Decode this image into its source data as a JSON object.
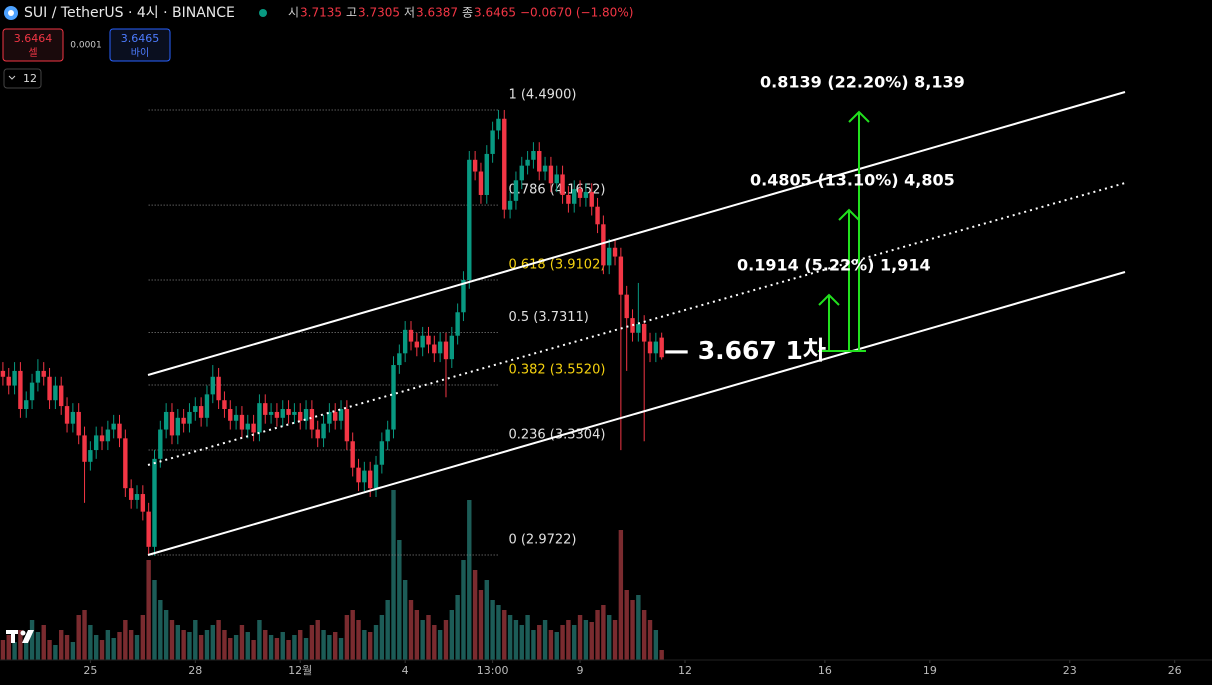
{
  "header": {
    "symbol": "SUI / TetherUS · 4시 · BINANCE",
    "ohlc": [
      {
        "label": "시",
        "value": "3.7135"
      },
      {
        "label": "고",
        "value": "3.7305"
      },
      {
        "label": "저",
        "value": "3.6387"
      },
      {
        "label": "종",
        "value": "3.6465"
      }
    ],
    "change": "−0.0670 (−1.80%)",
    "sell": {
      "price": "3.6464",
      "label": "셀"
    },
    "spread": "0.0001",
    "buy": {
      "price": "3.6465",
      "label": "바이"
    },
    "interval": "12"
  },
  "chart_data": {
    "type": "candlestick",
    "up_color": "#089981",
    "down_color": "#f23645",
    "volume_up_color": "#1c5c57",
    "volume_down_color": "#7a2b2f",
    "xlim": [
      -0.5,
      207.4
    ],
    "ylim": [
      2.614,
      4.865
    ],
    "volume_ylim": [
      0,
      400
    ],
    "xticks": [
      {
        "value": 15,
        "label": "25"
      },
      {
        "value": 33,
        "label": "28"
      },
      {
        "value": 51,
        "label": "12월"
      },
      {
        "value": 69,
        "label": "4"
      },
      {
        "value": 84,
        "label": "13:00"
      },
      {
        "value": 99,
        "label": "9"
      },
      {
        "value": 117,
        "label": "12"
      },
      {
        "value": 141,
        "label": "16"
      },
      {
        "value": 159,
        "label": "19"
      },
      {
        "value": 183,
        "label": "23"
      },
      {
        "value": 201,
        "label": "26"
      }
    ],
    "open": [
      3.6,
      3.58,
      3.55,
      3.6,
      3.47,
      3.5,
      3.56,
      3.6,
      3.58,
      3.5,
      3.55,
      3.48,
      3.42,
      3.46,
      3.38,
      3.29,
      3.33,
      3.38,
      3.36,
      3.4,
      3.42,
      3.37,
      3.2,
      3.16,
      3.18,
      3.12,
      3.0,
      3.3,
      3.4,
      3.46,
      3.38,
      3.44,
      3.42,
      3.46,
      3.48,
      3.44,
      3.52,
      3.58,
      3.5,
      3.47,
      3.43,
      3.45,
      3.4,
      3.42,
      3.39,
      3.49,
      3.45,
      3.46,
      3.44,
      3.47,
      3.45,
      3.46,
      3.43,
      3.47,
      3.4,
      3.37,
      3.42,
      3.46,
      3.43,
      3.47,
      3.36,
      3.27,
      3.22,
      3.26,
      3.2,
      3.28,
      3.36,
      3.4,
      3.62,
      3.66,
      3.74,
      3.7,
      3.68,
      3.72,
      3.69,
      3.66,
      3.7,
      3.64,
      3.72,
      3.8,
      3.91,
      4.32,
      4.28,
      4.2,
      4.34,
      4.42,
      4.46,
      4.15,
      4.18,
      4.25,
      4.3,
      4.32,
      4.35,
      4.28,
      4.3,
      4.24,
      4.27,
      4.2,
      4.17,
      4.22,
      4.19,
      4.21,
      4.16,
      4.1,
      3.96,
      4.02,
      3.99,
      3.86,
      3.78,
      3.73,
      3.76,
      3.7,
      3.66,
      3.7135
    ],
    "high": [
      3.63,
      3.61,
      3.63,
      3.63,
      3.53,
      3.59,
      3.64,
      3.63,
      3.61,
      3.58,
      3.58,
      3.51,
      3.49,
      3.49,
      3.41,
      3.36,
      3.41,
      3.41,
      3.43,
      3.45,
      3.45,
      3.4,
      3.23,
      3.21,
      3.21,
      3.15,
      3.33,
      3.43,
      3.49,
      3.49,
      3.47,
      3.47,
      3.49,
      3.51,
      3.51,
      3.55,
      3.62,
      3.61,
      3.53,
      3.5,
      3.48,
      3.48,
      3.45,
      3.45,
      3.52,
      3.52,
      3.49,
      3.49,
      3.5,
      3.5,
      3.49,
      3.49,
      3.5,
      3.5,
      3.43,
      3.45,
      3.49,
      3.49,
      3.5,
      3.5,
      3.39,
      3.3,
      3.29,
      3.29,
      3.31,
      3.39,
      3.43,
      3.65,
      3.69,
      3.77,
      3.77,
      3.73,
      3.75,
      3.75,
      3.72,
      3.73,
      3.73,
      3.75,
      3.83,
      3.94,
      4.35,
      4.35,
      4.31,
      4.37,
      4.45,
      4.49,
      4.49,
      4.21,
      4.28,
      4.33,
      4.35,
      4.38,
      4.38,
      4.33,
      4.33,
      4.3,
      4.3,
      4.23,
      4.25,
      4.25,
      4.24,
      4.24,
      4.19,
      4.13,
      4.05,
      4.05,
      4.02,
      3.89,
      3.81,
      3.9,
      3.79,
      3.73,
      3.73,
      3.7305
    ],
    "low": [
      3.55,
      3.52,
      3.52,
      3.44,
      3.44,
      3.47,
      3.53,
      3.55,
      3.47,
      3.47,
      3.45,
      3.39,
      3.39,
      3.35,
      3.15,
      3.26,
      3.3,
      3.33,
      3.33,
      3.37,
      3.34,
      3.17,
      3.13,
      3.13,
      3.09,
      2.97,
      2.97,
      3.27,
      3.37,
      3.35,
      3.35,
      3.39,
      3.39,
      3.43,
      3.41,
      3.41,
      3.49,
      3.47,
      3.44,
      3.4,
      3.4,
      3.37,
      3.37,
      3.36,
      3.36,
      3.42,
      3.42,
      3.41,
      3.41,
      3.42,
      3.42,
      3.4,
      3.4,
      3.37,
      3.34,
      3.34,
      3.39,
      3.4,
      3.4,
      3.33,
      3.24,
      3.19,
      3.19,
      3.17,
      3.17,
      3.25,
      3.33,
      3.37,
      3.59,
      3.63,
      3.67,
      3.65,
      3.65,
      3.66,
      3.63,
      3.63,
      3.51,
      3.61,
      3.69,
      3.77,
      3.88,
      4.25,
      4.17,
      4.17,
      4.31,
      4.39,
      4.12,
      4.12,
      4.15,
      4.22,
      4.27,
      4.29,
      4.25,
      4.25,
      4.21,
      4.21,
      4.17,
      4.14,
      4.14,
      4.16,
      4.16,
      4.13,
      4.07,
      3.93,
      3.93,
      3.96,
      3.33,
      3.6,
      3.7,
      3.7,
      3.36,
      3.63,
      3.63,
      3.6387
    ],
    "close": [
      3.58,
      3.55,
      3.6,
      3.47,
      3.5,
      3.56,
      3.6,
      3.58,
      3.5,
      3.55,
      3.48,
      3.42,
      3.46,
      3.38,
      3.29,
      3.33,
      3.38,
      3.36,
      3.4,
      3.42,
      3.37,
      3.2,
      3.16,
      3.18,
      3.12,
      3.0,
      3.3,
      3.4,
      3.46,
      3.38,
      3.44,
      3.42,
      3.46,
      3.48,
      3.44,
      3.52,
      3.58,
      3.5,
      3.47,
      3.43,
      3.45,
      3.4,
      3.42,
      3.39,
      3.49,
      3.45,
      3.46,
      3.44,
      3.47,
      3.45,
      3.46,
      3.43,
      3.47,
      3.4,
      3.37,
      3.42,
      3.46,
      3.43,
      3.47,
      3.36,
      3.27,
      3.22,
      3.26,
      3.2,
      3.28,
      3.36,
      3.4,
      3.62,
      3.66,
      3.74,
      3.7,
      3.68,
      3.72,
      3.69,
      3.66,
      3.7,
      3.64,
      3.72,
      3.8,
      3.91,
      4.32,
      4.28,
      4.2,
      4.34,
      4.42,
      4.46,
      4.15,
      4.18,
      4.25,
      4.3,
      4.32,
      4.35,
      4.28,
      4.3,
      4.24,
      4.27,
      4.2,
      4.17,
      4.22,
      4.19,
      4.21,
      4.16,
      4.1,
      3.96,
      4.02,
      3.99,
      3.86,
      3.78,
      3.73,
      3.76,
      3.7,
      3.66,
      3.7,
      3.6465
    ],
    "volume": [
      20,
      25,
      18,
      30,
      22,
      40,
      28,
      35,
      20,
      15,
      30,
      25,
      18,
      45,
      50,
      35,
      25,
      20,
      30,
      22,
      28,
      40,
      30,
      25,
      45,
      100,
      80,
      60,
      50,
      40,
      35,
      30,
      28,
      40,
      25,
      30,
      35,
      40,
      30,
      22,
      25,
      35,
      28,
      20,
      40,
      30,
      25,
      22,
      28,
      20,
      25,
      30,
      22,
      35,
      40,
      30,
      25,
      28,
      22,
      45,
      50,
      40,
      30,
      28,
      35,
      45,
      60,
      170,
      120,
      80,
      60,
      50,
      40,
      45,
      35,
      30,
      40,
      50,
      65,
      100,
      160,
      90,
      70,
      80,
      60,
      55,
      50,
      45,
      40,
      35,
      45,
      30,
      35,
      40,
      30,
      28,
      35,
      40,
      35,
      45,
      40,
      38,
      50,
      55,
      45,
      40,
      130,
      70,
      60,
      65,
      50,
      40,
      30,
      10
    ],
    "fib_levels": [
      {
        "value": 4.49,
        "label": "1 (4.4900)",
        "color": "#e0e0e0"
      },
      {
        "value": 4.1652,
        "label": "0.786 (4.1652)",
        "color": "#e0e0e0"
      },
      {
        "value": 3.9102,
        "label": "0.618 (3.9102)",
        "color": "#f5d20f"
      },
      {
        "value": 3.7311,
        "label": "0.5 (3.7311)",
        "color": "#e0e0e0"
      },
      {
        "value": 3.552,
        "label": "0.382 (3.5520)",
        "color": "#f5d20f"
      },
      {
        "value": 3.3304,
        "label": "0.236 (3.3304)",
        "color": "#e0e0e0"
      },
      {
        "value": 2.9722,
        "label": "0 (2.9722)",
        "color": "#e0e0e0"
      }
    ],
    "annotations": [
      "0.8139 (22.20%) 8,139",
      "0.4805 (13.10%) 4,805",
      "0.1914 (5.22%) 1,914",
      "— 3.667 1차"
    ]
  }
}
